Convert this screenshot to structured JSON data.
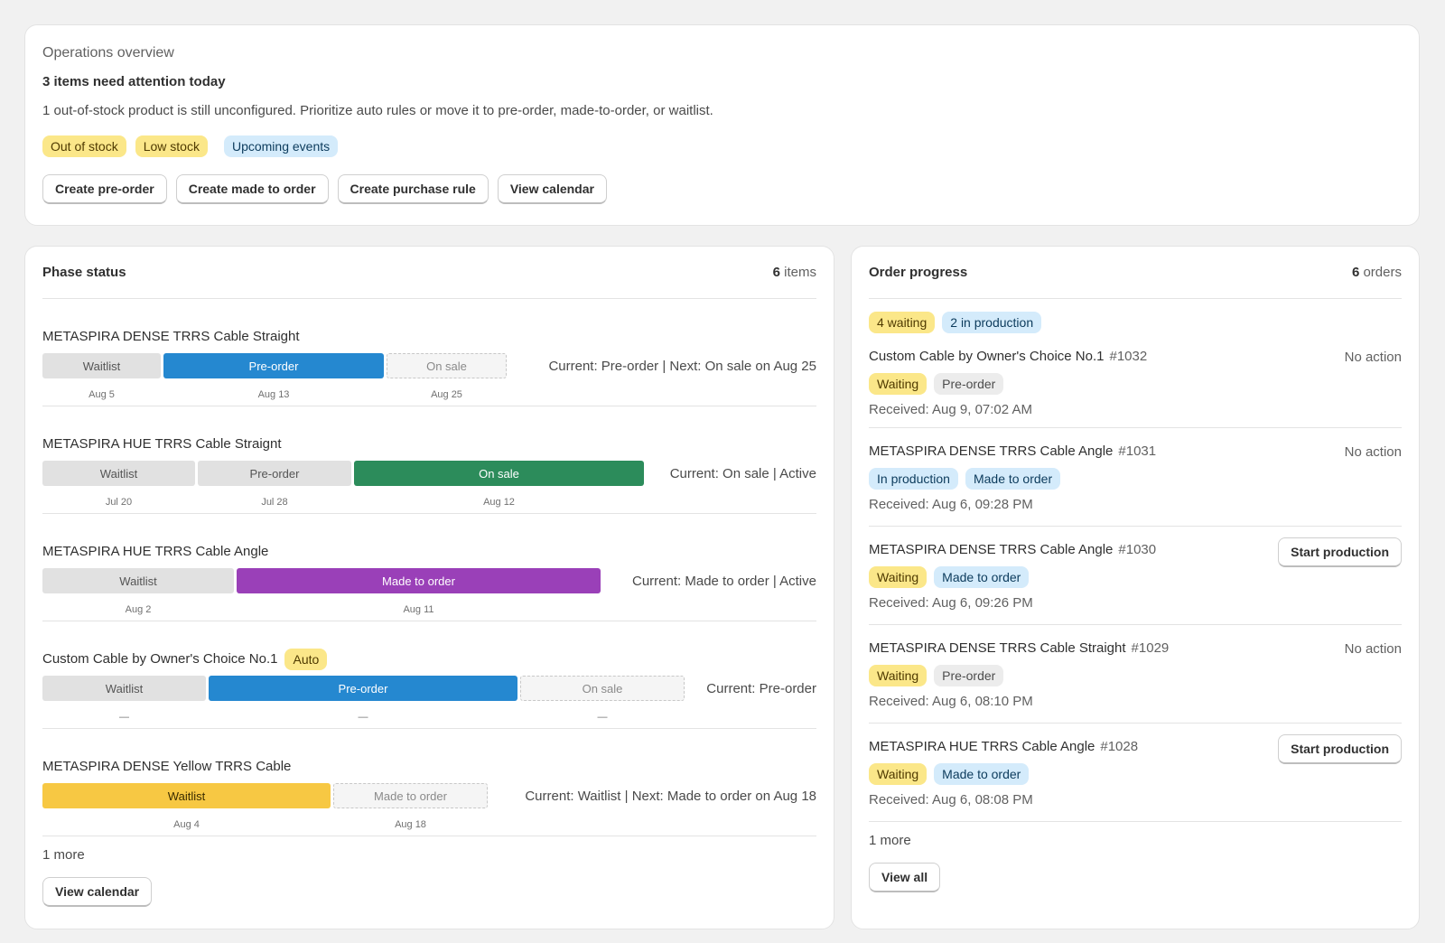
{
  "overview": {
    "title": "Operations overview",
    "headline": "3 items need attention today",
    "description": "1 out-of-stock product is still unconfigured. Prioritize auto rules or move it to pre-order, made-to-order, or waitlist.",
    "badges": [
      "Out of stock",
      "Low stock",
      "Upcoming events"
    ],
    "buttons": [
      "Create pre-order",
      "Create made to order",
      "Create purchase rule",
      "View calendar"
    ]
  },
  "phase": {
    "title": "Phase status",
    "count": "6",
    "count_label": "items",
    "items": [
      {
        "name": "METASPIRA DENSE TRRS Cable Straight",
        "segments": [
          "Waitlist",
          "Pre-order",
          "On sale"
        ],
        "dates": [
          "Aug 5",
          "Aug 13",
          "Aug 25"
        ],
        "status": "Current: Pre-order | Next: On sale on Aug 25"
      },
      {
        "name": "METASPIRA HUE TRRS Cable Straignt",
        "segments": [
          "Waitlist",
          "Pre-order",
          "On sale"
        ],
        "dates": [
          "Jul 20",
          "Jul 28",
          "Aug 12"
        ],
        "status": "Current: On sale | Active"
      },
      {
        "name": "METASPIRA HUE TRRS Cable Angle",
        "segments": [
          "Waitlist",
          "Made to order"
        ],
        "dates": [
          "Aug 2",
          "Aug 11"
        ],
        "status": "Current: Made to order | Active"
      },
      {
        "name": "Custom Cable by Owner's Choice No.1",
        "tag": "Auto",
        "segments": [
          "Waitlist",
          "Pre-order",
          "On sale"
        ],
        "dates": [
          "—",
          "—",
          "—"
        ],
        "status": "Current: Pre-order"
      },
      {
        "name": "METASPIRA DENSE Yellow TRRS Cable",
        "segments": [
          "Waitlist",
          "Made to order"
        ],
        "dates": [
          "Aug 4",
          "Aug 18"
        ],
        "status": "Current: Waitlist | Next: Made to order on Aug 18"
      }
    ],
    "more": "1 more",
    "button": "View calendar"
  },
  "orders": {
    "title": "Order progress",
    "count": "6",
    "count_label": "orders",
    "filters": [
      "4 waiting",
      "2 in production"
    ],
    "items": [
      {
        "name": "Custom Cable by Owner's Choice No.1",
        "number": "#1032",
        "action": "No action",
        "badges": [
          "Waiting",
          "Pre-order"
        ],
        "received": "Received: Aug 9, 07:02 AM"
      },
      {
        "name": "METASPIRA DENSE TRRS Cable Angle",
        "number": "#1031",
        "action": "No action",
        "badges": [
          "In production",
          "Made to order"
        ],
        "received": "Received: Aug 6, 09:28 PM"
      },
      {
        "name": "METASPIRA DENSE TRRS Cable Angle",
        "number": "#1030",
        "action": "Start production",
        "badges": [
          "Waiting",
          "Made to order"
        ],
        "received": "Received: Aug 6, 09:26 PM"
      },
      {
        "name": "METASPIRA DENSE TRRS Cable Straight",
        "number": "#1029",
        "action": "No action",
        "badges": [
          "Waiting",
          "Pre-order"
        ],
        "received": "Received: Aug 6, 08:10 PM"
      },
      {
        "name": "METASPIRA HUE TRRS Cable Angle",
        "number": "#1028",
        "action": "Start production",
        "badges": [
          "Waiting",
          "Made to order"
        ],
        "received": "Received: Aug 6, 08:08 PM"
      }
    ],
    "more": "1 more",
    "button": "View all"
  },
  "colors": {
    "pre_order": "#2588d0",
    "on_sale": "#2c8c5b",
    "made_to_order": "#9a40b8",
    "waitlist_active": "#f7c843",
    "badge_yellow": "#fbe789",
    "badge_blue": "#d4ebfb"
  }
}
